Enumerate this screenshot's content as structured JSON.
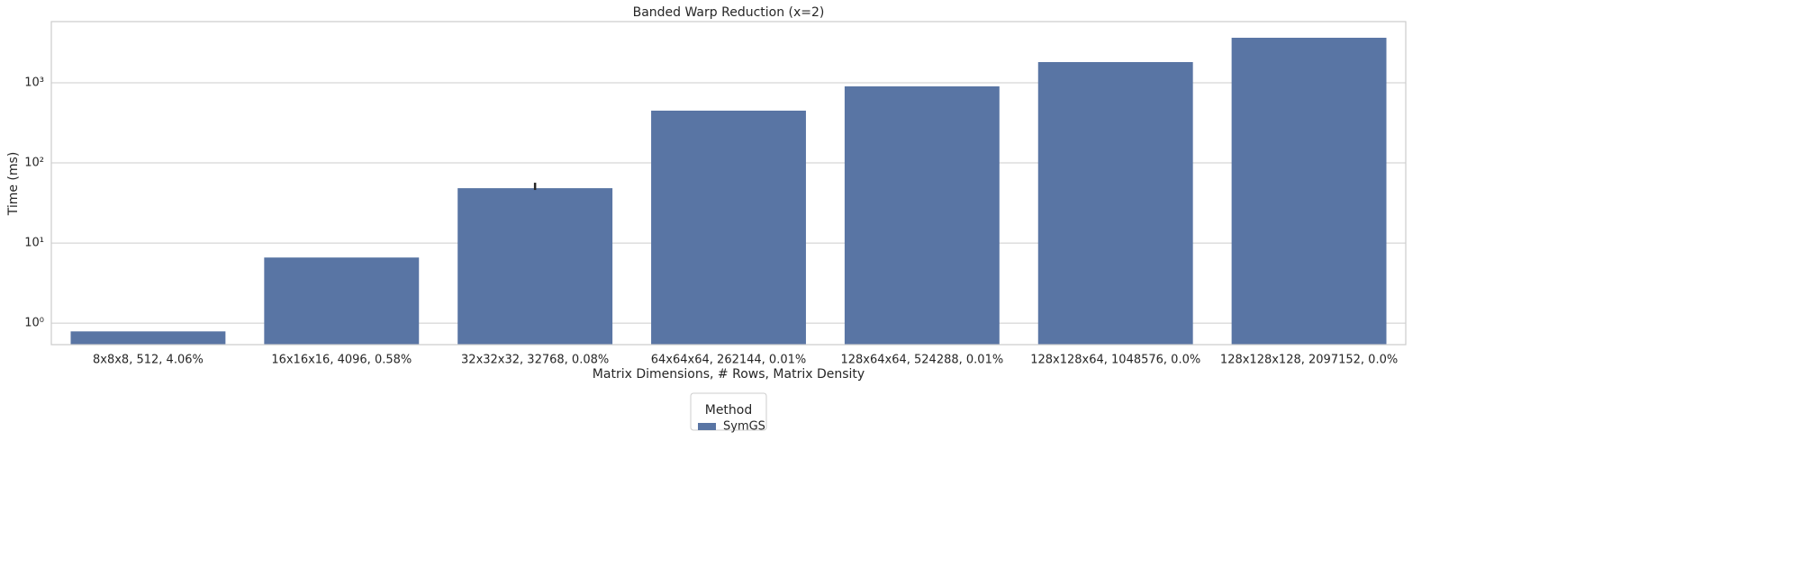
{
  "chart_data": {
    "type": "bar",
    "title": "Banded Warp Reduction (x=2)",
    "xlabel": "Matrix Dimensions, # Rows, Matrix Density",
    "ylabel": "Time (ms)",
    "categories": [
      "8x8x8, 512, 4.06%",
      "16x16x16, 4096, 0.58%",
      "32x32x32, 32768, 0.08%",
      "64x64x64, 262144, 0.01%",
      "128x64x64, 524288, 0.01%",
      "128x128x64, 1048576, 0.0%",
      "128x128x128, 2097152, 0.0%"
    ],
    "series": [
      {
        "name": "SymGS",
        "color": "#5975a4",
        "values": [
          0.79,
          6.6,
          48.4,
          449,
          902,
          1812,
          3646
        ],
        "ci": [
          null,
          null,
          [
            46,
            56.6
          ],
          null,
          null,
          null,
          null
        ]
      }
    ],
    "ylim": [
      0.54,
      5800
    ],
    "yticks": [
      {
        "value": 1,
        "label": "10⁰"
      },
      {
        "value": 10,
        "label": "10¹"
      },
      {
        "value": 100,
        "label": "10²"
      },
      {
        "value": 1000,
        "label": "10³"
      }
    ],
    "yscale": "log",
    "grid": true,
    "legend_title": "Method",
    "legend_position": "lower center"
  }
}
